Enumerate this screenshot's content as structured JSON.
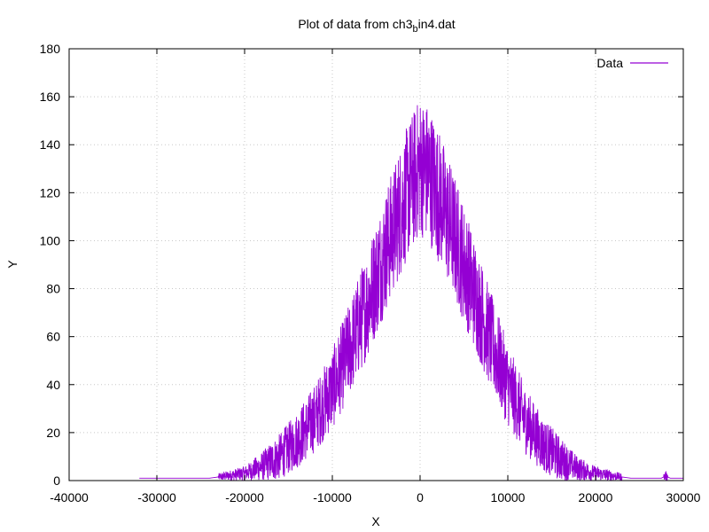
{
  "chart_data": {
    "type": "line",
    "title": {
      "main": "Plot of data from ch3",
      "sub": "b",
      "tail": "in4.dat"
    },
    "xlabel": "X",
    "ylabel": "Y",
    "xlim": [
      -40000,
      30000
    ],
    "ylim": [
      0,
      180
    ],
    "xticks": [
      -40000,
      -30000,
      -20000,
      -10000,
      0,
      10000,
      20000,
      30000
    ],
    "yticks": [
      0,
      20,
      40,
      60,
      80,
      100,
      120,
      140,
      160,
      180
    ],
    "grid": true,
    "legend": {
      "position": "top-right",
      "entries": [
        "Data"
      ]
    },
    "colors": {
      "series": "#9400d3",
      "grid": "#c8c8c8",
      "axis": "#000000"
    },
    "series": [
      {
        "name": "Data",
        "points": [
          [
            -32000,
            1
          ],
          [
            -28000,
            1
          ],
          [
            -24000,
            1
          ],
          [
            -22000,
            2
          ],
          [
            -20000,
            3
          ],
          [
            -18000,
            6
          ],
          [
            -16000,
            10
          ],
          [
            -14000,
            17
          ],
          [
            -12000,
            26
          ],
          [
            -10000,
            38
          ],
          [
            -8000,
            55
          ],
          [
            -6000,
            74
          ],
          [
            -4000,
            95
          ],
          [
            -2000,
            115
          ],
          [
            -1000,
            124
          ],
          [
            0,
            131
          ],
          [
            1000,
            128
          ],
          [
            2000,
            120
          ],
          [
            4000,
            101
          ],
          [
            6000,
            80
          ],
          [
            8000,
            59
          ],
          [
            10000,
            40
          ],
          [
            12000,
            25
          ],
          [
            14000,
            15
          ],
          [
            16000,
            9
          ],
          [
            18000,
            5
          ],
          [
            20000,
            3
          ],
          [
            22000,
            2
          ],
          [
            24000,
            1
          ],
          [
            26000,
            1
          ],
          [
            27500,
            1
          ],
          [
            28000,
            2
          ],
          [
            28500,
            1
          ],
          [
            30000,
            1
          ]
        ]
      }
    ]
  }
}
